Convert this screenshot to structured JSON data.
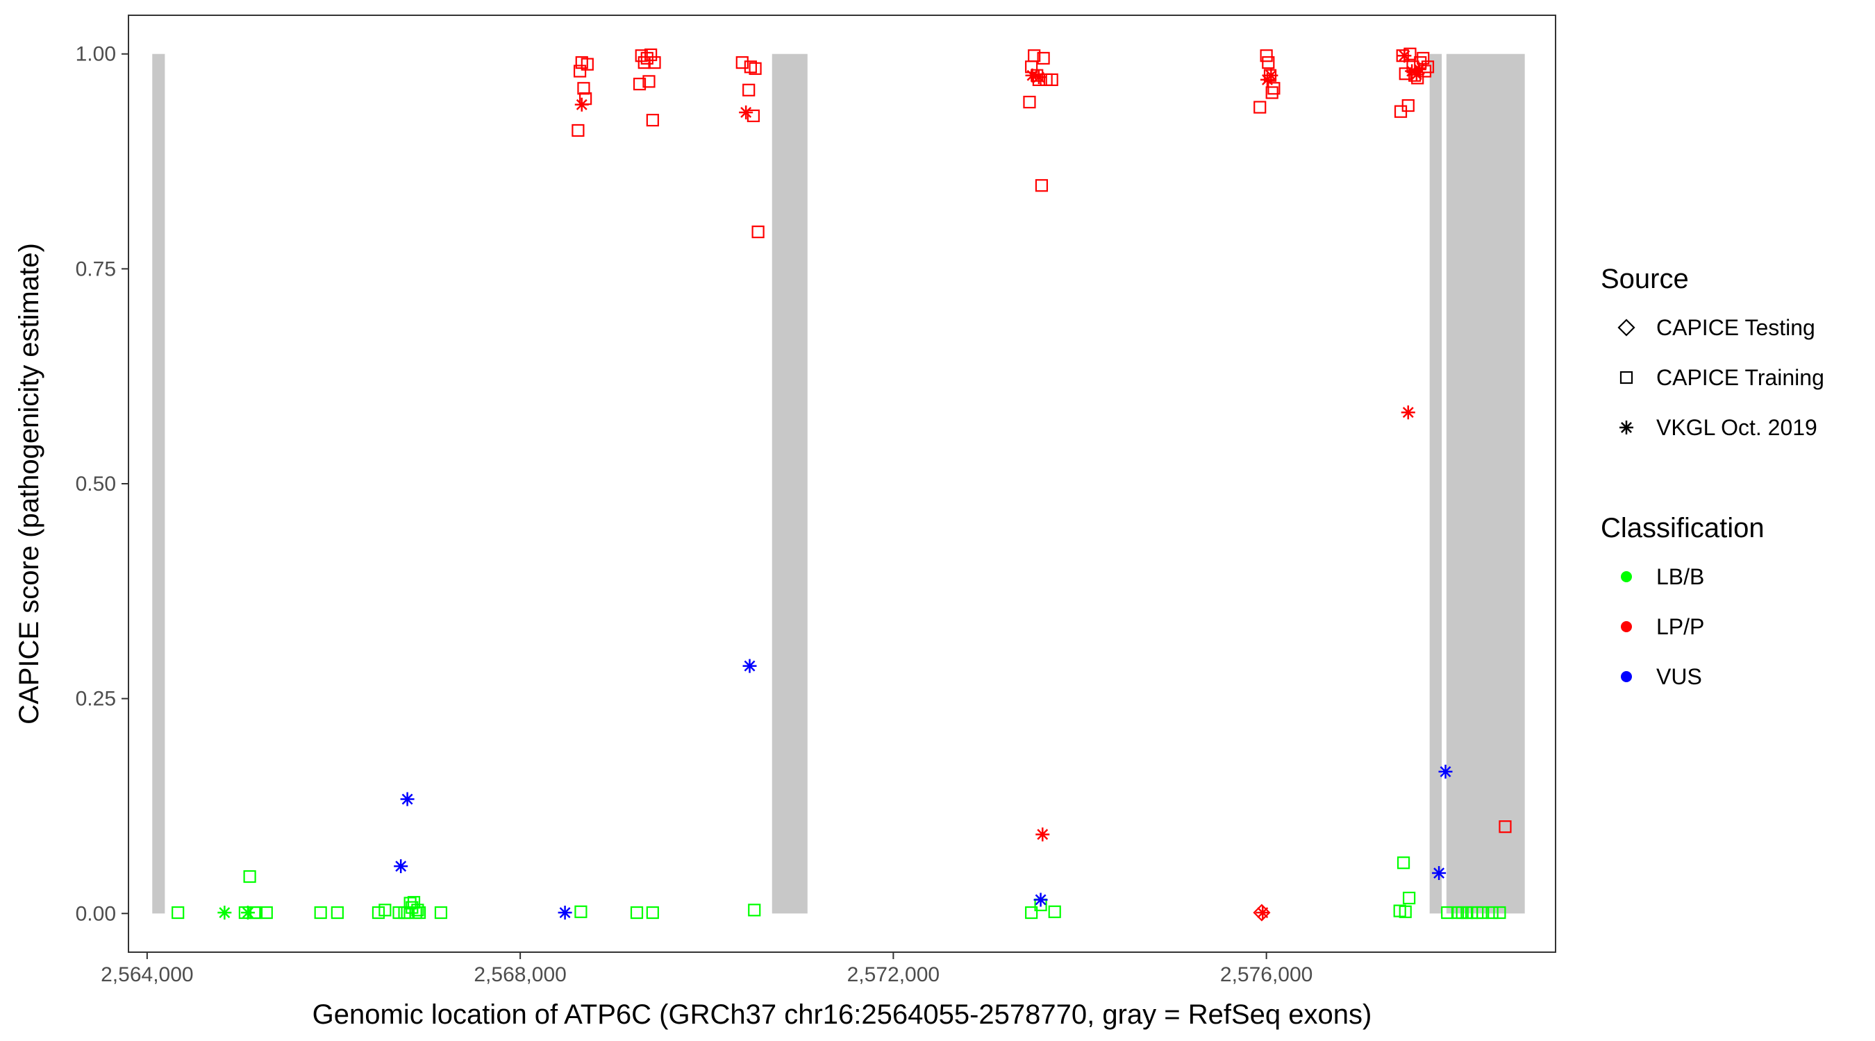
{
  "chart_data": {
    "type": "scatter",
    "xlabel": "Genomic location of ATP6C (GRCh37 chr16:2564055-2578770, gray = RefSeq exons)",
    "ylabel": "CAPICE score (pathogenicity estimate)",
    "xlim": [
      2563800,
      2579100
    ],
    "ylim": [
      -0.045,
      1.045
    ],
    "x_ticks": [
      2564000,
      2568000,
      2572000,
      2576000
    ],
    "x_tick_labels": [
      "2,564,000",
      "2,568,000",
      "2,572,000",
      "2,576,000"
    ],
    "y_ticks": [
      0,
      0.25,
      0.5,
      0.75,
      1
    ],
    "y_tick_labels": [
      "0.00",
      "0.25",
      "0.50",
      "0.75",
      "1.00"
    ],
    "grid": false,
    "legend_position": "right",
    "exons": [
      [
        2564055,
        2564190
      ],
      [
        2570700,
        2571080
      ],
      [
        2577750,
        2577880
      ],
      [
        2577930,
        2578770
      ]
    ],
    "legends": [
      {
        "title": "Source",
        "entries": [
          {
            "label": "CAPICE Testing",
            "shape": "diamond"
          },
          {
            "label": "CAPICE Training",
            "shape": "square"
          },
          {
            "label": "VKGL Oct. 2019",
            "shape": "asterisk"
          }
        ]
      },
      {
        "title": "Classification",
        "entries": [
          {
            "label": "LB/B",
            "color": "#00ff00"
          },
          {
            "label": "LP/P",
            "color": "#ff0000"
          },
          {
            "label": "VUS",
            "color": "#0000ff"
          }
        ]
      }
    ],
    "colors": {
      "LB/B": "#00ff00",
      "LP/P": "#ff0000",
      "VUS": "#0000ff"
    },
    "series": [
      {
        "name": "CAPICE Training",
        "class": "LB/B",
        "x": [
          2564330,
          2565050,
          2565100,
          2565150,
          2565170,
          2565280,
          2565860,
          2566040,
          2566480,
          2566550,
          2566700,
          2566760,
          2566790,
          2566820,
          2566840,
          2566860,
          2566880,
          2566900,
          2566920,
          2567150,
          2568650,
          2569250,
          2569420,
          2570510,
          2573480,
          2573580,
          2573730,
          2577430,
          2577470,
          2577490,
          2577530,
          2577940,
          2578050,
          2578100,
          2578150,
          2578200,
          2578260,
          2578320,
          2578420,
          2578500
        ],
        "y": [
          0.001,
          0.001,
          0.043,
          0.001,
          0.001,
          0.001,
          0.001,
          0.001,
          0.001,
          0.004,
          0.001,
          0.001,
          0.001,
          0.012,
          0.007,
          0.013,
          0.001,
          0.004,
          0.001,
          0.001,
          0.002,
          0.001,
          0.001,
          0.004,
          0.001,
          0.01,
          0.002,
          0.003,
          0.059,
          0.002,
          0.018,
          0.001,
          0.001,
          0.001,
          0.001,
          0.001,
          0.001,
          0.001,
          0.001,
          0.001
        ]
      },
      {
        "name": "CAPICE Training",
        "class": "LP/P",
        "x": [
          2568620,
          2568640,
          2568660,
          2568680,
          2568700,
          2568720,
          2569280,
          2569300,
          2569330,
          2569360,
          2569380,
          2569400,
          2569420,
          2569440,
          2570380,
          2570450,
          2570470,
          2570500,
          2570520,
          2570550,
          2573460,
          2573480,
          2573510,
          2573540,
          2573560,
          2573590,
          2573610,
          2573640,
          2573700,
          2575930,
          2576000,
          2576020,
          2576040,
          2576060,
          2576080,
          2577440,
          2577460,
          2577490,
          2577520,
          2577540,
          2577570,
          2577590,
          2577620,
          2577650,
          2577680,
          2577700,
          2577730,
          2578560
        ],
        "y": [
          0.911,
          0.98,
          0.99,
          0.96,
          0.948,
          0.988,
          0.965,
          0.998,
          0.99,
          0.995,
          0.968,
          0.999,
          0.923,
          0.99,
          0.99,
          0.958,
          0.985,
          0.928,
          0.983,
          0.793,
          0.944,
          0.985,
          0.998,
          0.975,
          0.97,
          0.847,
          0.995,
          0.97,
          0.97,
          0.938,
          0.998,
          0.99,
          0.975,
          0.955,
          0.96,
          0.933,
          0.998,
          0.977,
          0.94,
          1.0,
          0.985,
          0.975,
          0.972,
          0.99,
          0.995,
          0.98,
          0.985,
          0.101
        ]
      },
      {
        "name": "VKGL Oct. 2019",
        "class": "LB/B",
        "x": [
          2564830,
          2565080
        ],
        "y": [
          0.001,
          0.001
        ]
      },
      {
        "name": "VKGL Oct. 2019",
        "class": "LP/P",
        "x": [
          2568660,
          2570420,
          2573490,
          2573560,
          2573600,
          2575960,
          2576010,
          2576050,
          2577480,
          2577520,
          2577560,
          2577610,
          2577640
        ],
        "y": [
          0.941,
          0.932,
          0.975,
          0.973,
          0.092,
          0.001,
          0.97,
          0.975,
          0.998,
          0.583,
          0.98,
          0.976,
          0.982
        ]
      },
      {
        "name": "VKGL Oct. 2019",
        "class": "VUS",
        "x": [
          2566720,
          2566790,
          2568480,
          2570460,
          2573580,
          2577850,
          2577920
        ],
        "y": [
          0.055,
          0.133,
          0.001,
          0.288,
          0.016,
          0.047,
          0.165
        ]
      },
      {
        "name": "CAPICE Testing",
        "class": "LP/P",
        "x": [
          2575950
        ],
        "y": [
          0.001
        ]
      }
    ]
  }
}
